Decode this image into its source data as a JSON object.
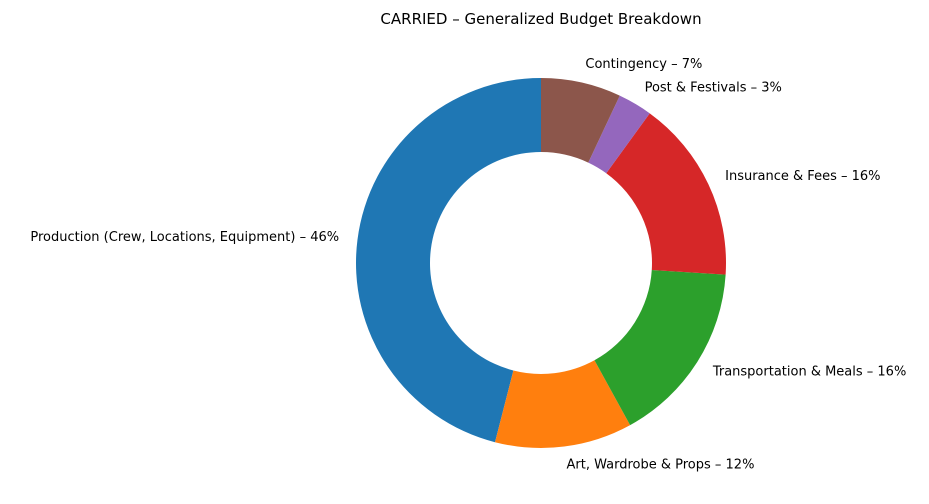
{
  "chart_data": {
    "type": "pie",
    "variant": "donut",
    "title": "CARRIED – Generalized Budget Breakdown",
    "start_angle_deg": 90,
    "direction": "counterclockwise",
    "slices": [
      {
        "label": "Production (Crew, Locations, Equipment) – 46%",
        "value": 46,
        "color": "#1f77b4"
      },
      {
        "label": "Art, Wardrobe & Props – 12%",
        "value": 12,
        "color": "#ff7f0e"
      },
      {
        "label": "Transportation & Meals – 16%",
        "value": 16,
        "color": "#2ca02c"
      },
      {
        "label": "Insurance & Fees – 16%",
        "value": 16,
        "color": "#d62728"
      },
      {
        "label": "Post & Festivals – 3%",
        "value": 3,
        "color": "#9467bd"
      },
      {
        "label": "Contingency – 7%",
        "value": 7,
        "color": "#8c564b"
      }
    ]
  }
}
